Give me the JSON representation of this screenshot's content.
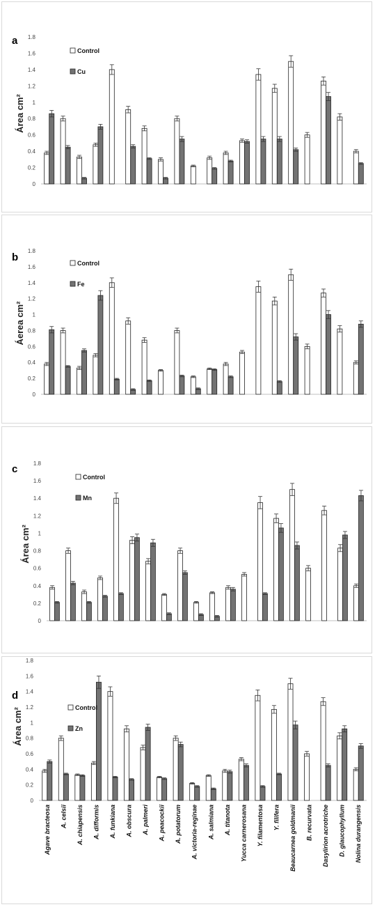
{
  "categories": [
    "Agave bracteosa",
    "A. celsii",
    "A. chiapensis",
    "A. difformis",
    "A. funkiana",
    "A. obscura",
    "A. palmeri",
    "A. peacockii",
    "A. potatorum",
    "A. victoria-reginae",
    "A. salmiana",
    "A. titanota",
    "Yucca carnerosana",
    "Y. filamentosa",
    "Y. filifera",
    "Beaucarnea goldmanii",
    "B. recurvata",
    "Dasylirion acrotriche",
    "D. glaucophyllum",
    "Nolina durangensis"
  ],
  "colors": {
    "control": "#ffffff",
    "treatment": "#737373",
    "axis": "#bfbfbf",
    "error": "#333333"
  },
  "chart_data": [
    {
      "panel": "a",
      "type": "bar",
      "ylabel": "Área cm²",
      "ylim": [
        0,
        1.8
      ],
      "yticks": [
        "0",
        "0.2",
        "0.4",
        "0.6",
        "0.8",
        "1",
        "1.2",
        "1.4",
        "1.6",
        "1.8"
      ],
      "legend_position": "top-left",
      "series": [
        {
          "name": "Control",
          "values": [
            0.38,
            0.8,
            0.33,
            0.48,
            1.4,
            0.91,
            0.68,
            0.3,
            0.8,
            0.22,
            0.32,
            0.38,
            0.53,
            1.34,
            1.17,
            1.5,
            0.6,
            1.26,
            0.82,
            0.4
          ],
          "errors": [
            0.02,
            0.03,
            0.02,
            0.02,
            0.06,
            0.04,
            0.03,
            0.02,
            0.03,
            0.01,
            0.02,
            0.02,
            0.02,
            0.07,
            0.05,
            0.07,
            0.03,
            0.05,
            0.04,
            0.02
          ]
        },
        {
          "name": "Cu",
          "values": [
            0.86,
            0.45,
            0.07,
            0.7,
            null,
            0.46,
            0.31,
            0.07,
            0.55,
            null,
            0.19,
            0.28,
            0.52,
            0.55,
            0.55,
            0.42,
            null,
            1.07,
            null,
            0.25
          ],
          "errors": [
            0.04,
            0.02,
            0.01,
            0.03,
            null,
            0.02,
            0.01,
            0.01,
            0.03,
            null,
            0.01,
            0.01,
            0.02,
            0.03,
            0.03,
            0.02,
            null,
            0.05,
            null,
            0.01
          ]
        }
      ]
    },
    {
      "panel": "b",
      "type": "bar",
      "ylabel": "Áerea cm²",
      "ylim": [
        0,
        1.8
      ],
      "yticks": [
        "0",
        "0.2",
        "0.4",
        "0.6",
        "0.8",
        "1",
        "1.2",
        "1.4",
        "1.6",
        "1.8"
      ],
      "legend_position": "top-left",
      "series": [
        {
          "name": "Control",
          "values": [
            0.38,
            0.8,
            0.33,
            0.49,
            1.4,
            0.92,
            0.68,
            0.3,
            0.8,
            0.22,
            0.32,
            0.38,
            0.53,
            1.35,
            1.17,
            1.5,
            0.6,
            1.27,
            0.82,
            0.4
          ],
          "errors": [
            0.02,
            0.03,
            0.02,
            0.02,
            0.06,
            0.04,
            0.03,
            0.01,
            0.03,
            0.01,
            0.01,
            0.02,
            0.02,
            0.07,
            0.05,
            0.07,
            0.03,
            0.05,
            0.04,
            0.02
          ]
        },
        {
          "name": "Fe",
          "values": [
            0.81,
            0.35,
            0.55,
            1.24,
            0.19,
            0.06,
            0.17,
            null,
            0.23,
            0.07,
            0.31,
            0.22,
            null,
            null,
            0.16,
            0.72,
            null,
            1.0,
            null,
            0.88
          ],
          "errors": [
            0.04,
            0.01,
            0.02,
            0.06,
            0.01,
            0.01,
            0.01,
            null,
            0.01,
            0.01,
            0.01,
            0.01,
            null,
            null,
            0.01,
            0.04,
            null,
            0.05,
            null,
            0.04
          ]
        }
      ]
    },
    {
      "panel": "c",
      "type": "bar",
      "ylabel": "Área cm²",
      "ylim": [
        0,
        1.8
      ],
      "yticks": [
        "0",
        "0.2",
        "0.4",
        "0.6",
        "0.8",
        "1",
        "1.2",
        "1.4",
        "1.6",
        "1.8"
      ],
      "legend_position": "top-left",
      "series": [
        {
          "name": "Control",
          "values": [
            0.38,
            0.8,
            0.33,
            0.49,
            1.4,
            0.92,
            0.68,
            0.3,
            0.8,
            0.21,
            0.32,
            0.38,
            0.53,
            1.35,
            1.17,
            1.5,
            0.6,
            1.26,
            0.83,
            0.4
          ],
          "errors": [
            0.02,
            0.03,
            0.02,
            0.02,
            0.06,
            0.04,
            0.03,
            0.01,
            0.03,
            0.01,
            0.01,
            0.02,
            0.02,
            0.07,
            0.05,
            0.07,
            0.03,
            0.05,
            0.04,
            0.02
          ]
        },
        {
          "name": "Mn",
          "values": [
            0.21,
            0.43,
            0.21,
            0.28,
            0.31,
            0.95,
            0.89,
            0.08,
            0.55,
            0.07,
            0.05,
            0.36,
            null,
            0.31,
            1.06,
            0.86,
            null,
            null,
            0.98,
            1.43
          ],
          "errors": [
            0.01,
            0.02,
            0.01,
            0.01,
            0.01,
            0.04,
            0.04,
            0.01,
            0.02,
            0.01,
            0.01,
            0.02,
            null,
            0.01,
            0.05,
            0.04,
            null,
            null,
            0.04,
            0.06
          ]
        }
      ]
    },
    {
      "panel": "d",
      "type": "bar",
      "ylabel": "Área cm²",
      "ylim": [
        0,
        1.8
      ],
      "yticks": [
        "0",
        "0.2",
        "0.4",
        "0.6",
        "0.8",
        "1",
        "1.2",
        "1.4",
        "1.6",
        "1.8"
      ],
      "legend_position": "top-left",
      "series": [
        {
          "name": "Control",
          "values": [
            0.38,
            0.8,
            0.33,
            0.48,
            1.4,
            0.92,
            0.68,
            0.3,
            0.8,
            0.22,
            0.32,
            0.38,
            0.53,
            1.35,
            1.17,
            1.5,
            0.6,
            1.27,
            0.83,
            0.4
          ],
          "errors": [
            0.02,
            0.03,
            0.01,
            0.02,
            0.06,
            0.04,
            0.03,
            0.01,
            0.03,
            0.01,
            0.01,
            0.02,
            0.02,
            0.07,
            0.05,
            0.07,
            0.03,
            0.05,
            0.04,
            0.02
          ]
        },
        {
          "name": "Zn",
          "values": [
            0.5,
            0.34,
            0.32,
            1.52,
            0.3,
            0.27,
            0.94,
            0.28,
            0.72,
            0.18,
            0.15,
            0.37,
            0.45,
            0.18,
            0.34,
            0.97,
            null,
            0.45,
            0.92,
            0.7
          ],
          "errors": [
            0.02,
            0.01,
            0.01,
            0.08,
            0.01,
            0.01,
            0.04,
            0.01,
            0.03,
            0.01,
            0.01,
            0.02,
            0.02,
            0.01,
            0.01,
            0.05,
            null,
            0.02,
            0.04,
            0.03
          ]
        }
      ]
    }
  ]
}
